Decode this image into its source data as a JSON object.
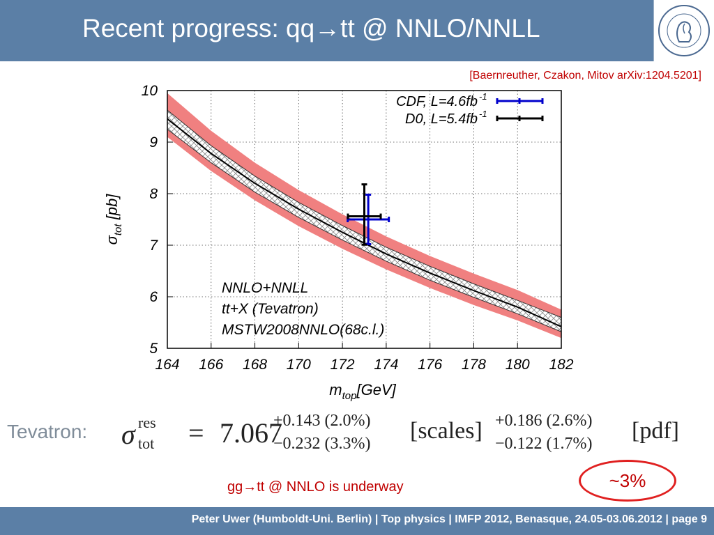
{
  "header": {
    "title": "Recent progress: qq→tt @ NNLO/NNLL"
  },
  "citation": "[Baernreuther, Czakon, Mitov arXiv:1204.5201]",
  "formula": {
    "label": "Tevatron:",
    "symbol": "σ",
    "sup": "res",
    "sub": "tot",
    "equals": "=",
    "value": "7.067",
    "scales_up": "+0.143 (2.0%)",
    "scales_down": "−0.232 (3.3%)",
    "scales_label": "[scales]",
    "pdf_up": "+0.186 (2.6%)",
    "pdf_down": "−0.122 (1.7%)",
    "pdf_label": "[pdf]"
  },
  "underway": "gg→tt @ NNLO is underway",
  "callout": "~3%",
  "footer": "Peter Uwer  (Humboldt-Uni. Berlin)  |  Top physics    |  IMFP 2012, Benasque, 24.05-03.06.2012  |  page 9",
  "chart_data": {
    "type": "line",
    "xlabel": "m",
    "xlabel_sub": "top",
    "xlabel_unit": "[GeV]",
    "ylabel": "σ",
    "ylabel_sub": "tot",
    "ylabel_unit": "[pb]",
    "xlim": [
      164,
      182
    ],
    "ylim": [
      5,
      10
    ],
    "xticks": [
      "164",
      "166",
      "168",
      "170",
      "172",
      "174",
      "176",
      "178",
      "180",
      "182"
    ],
    "yticks": [
      "5",
      "6",
      "7",
      "8",
      "9",
      "10"
    ],
    "grid": true,
    "annotations": [
      "NNLO+NNLL",
      "tt+X (Tevatron)",
      "MSTW2008NNLO(68c.l.)"
    ],
    "band_color": "#f08080",
    "central_line": {
      "x": [
        164,
        166,
        168,
        170,
        172,
        174,
        176,
        178,
        180,
        182
      ],
      "y": [
        9.45,
        8.78,
        8.2,
        7.7,
        7.25,
        6.83,
        6.46,
        6.12,
        5.8,
        5.42
      ]
    },
    "scale_band": {
      "upper": [
        9.62,
        8.93,
        8.34,
        7.83,
        7.38,
        6.96,
        6.59,
        6.25,
        5.93,
        5.6
      ],
      "lower": [
        9.25,
        8.6,
        8.03,
        7.54,
        7.1,
        6.69,
        6.32,
        5.99,
        5.67,
        5.32
      ]
    },
    "pdf_band": {
      "upper": [
        9.95,
        9.22,
        8.6,
        8.07,
        7.6,
        7.17,
        6.79,
        6.45,
        6.13,
        5.75
      ],
      "lower": [
        9.1,
        8.44,
        7.87,
        7.37,
        6.93,
        6.53,
        6.17,
        5.84,
        5.54,
        5.2
      ]
    },
    "series": [
      {
        "name": "CDF, L=4.6fb-1",
        "legend_main": "CDF, L=4.6fb",
        "legend_sup": "-1",
        "color": "#0000cc",
        "x": 173.18,
        "y": 7.5,
        "xerr": [
          0.94,
          0.94
        ],
        "yerr": [
          0.48,
          0.48
        ]
      },
      {
        "name": "D0, L=5.4fb-1",
        "legend_main": "D0, L=5.4fb",
        "legend_sup": "-1",
        "color": "#000000",
        "x": 173.0,
        "y": 7.56,
        "xerr": [
          0.75,
          0.75
        ],
        "yerr": [
          0.55,
          0.62
        ]
      }
    ]
  }
}
